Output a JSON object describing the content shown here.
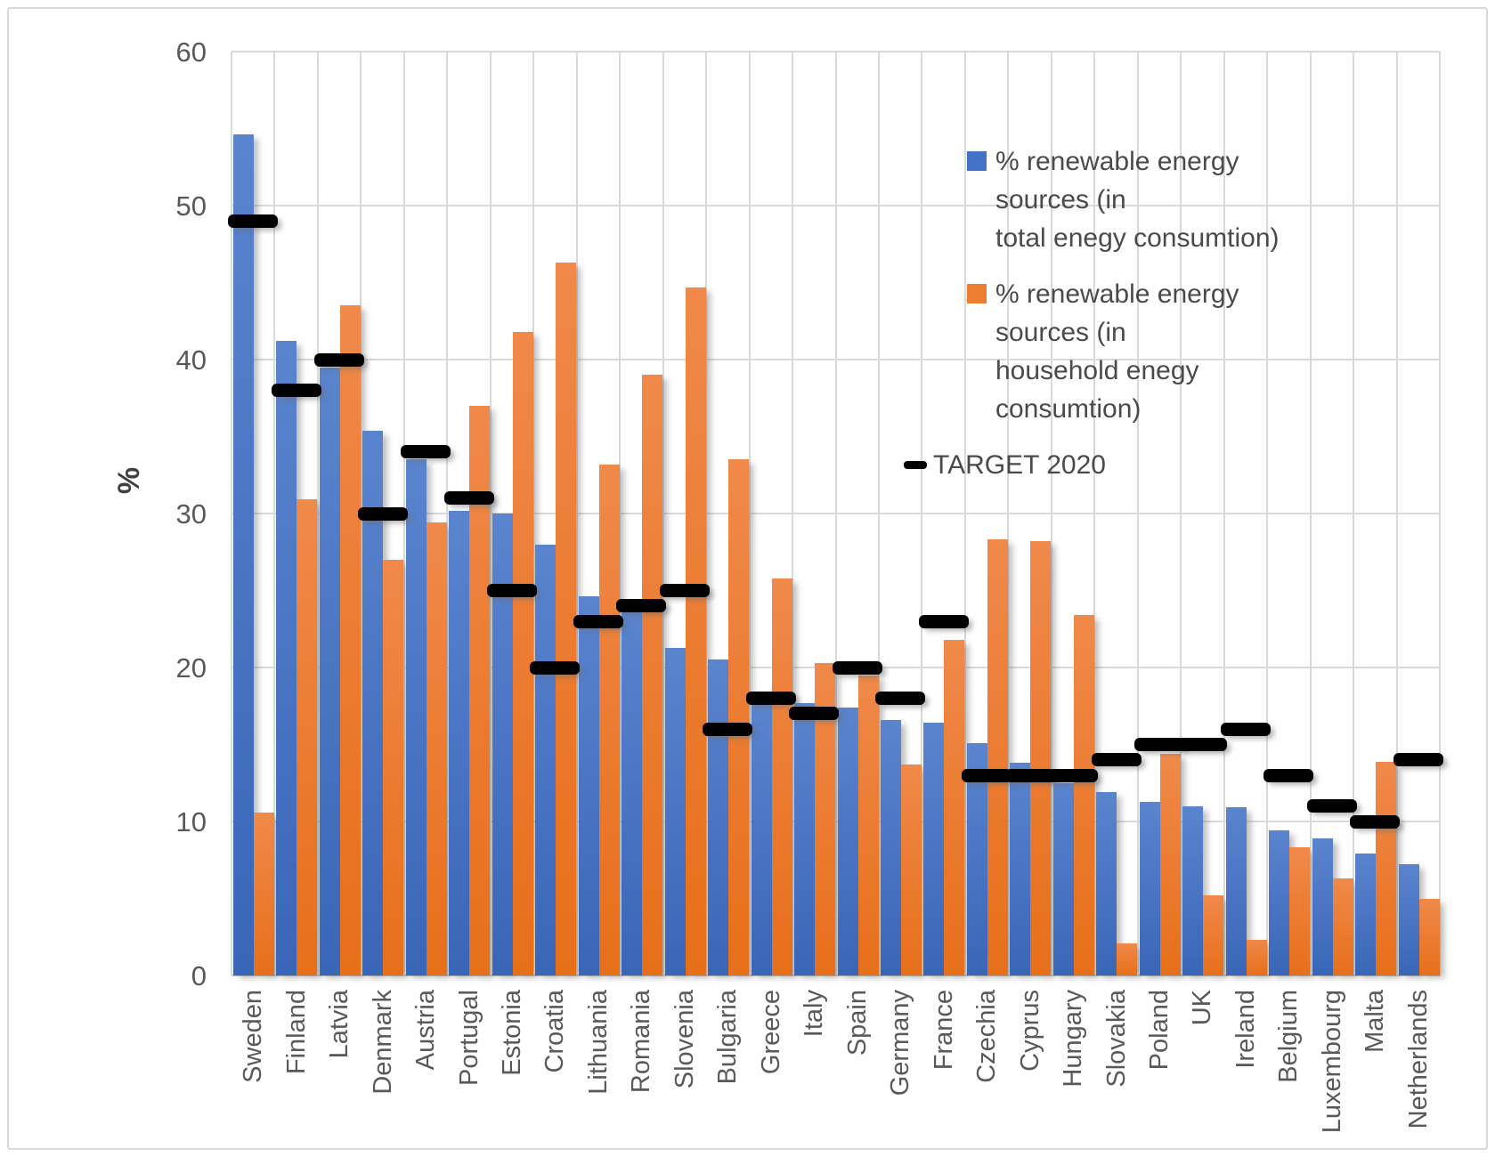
{
  "chart_data": {
    "type": "bar",
    "title": "",
    "xlabel": "",
    "ylabel": "%",
    "ylim": [
      0,
      60
    ],
    "y_ticks": [
      0,
      10,
      20,
      30,
      40,
      50,
      60
    ],
    "grid": true,
    "legend_position": "upper-right-inside",
    "categories": [
      "Sweden",
      "Finland",
      "Latvia",
      "Denmark",
      "Austria",
      "Portugal",
      "Estonia",
      "Croatia",
      "Lithuania",
      "Romania",
      "Slovenia",
      "Bulgaria",
      "Greece",
      "Italy",
      "Spain",
      "Germany",
      "France",
      "Czechia",
      "Cyprus",
      "Hungary",
      "Slovakia",
      "Poland",
      "UK",
      "Ireland",
      "Belgium",
      "Luxembourg",
      "Malta",
      "Netherlands"
    ],
    "series": [
      {
        "name": "% renewable energy sources (in total enegy consumtion)",
        "type": "bar",
        "color": "#4472C4",
        "values": [
          54.6,
          41.2,
          39.5,
          35.4,
          33.5,
          30.2,
          30.0,
          28.0,
          24.6,
          23.9,
          21.3,
          20.5,
          17.9,
          17.7,
          17.4,
          16.6,
          16.4,
          15.1,
          13.8,
          12.5,
          11.9,
          11.3,
          11.0,
          10.9,
          9.4,
          8.9,
          7.9,
          7.2
        ]
      },
      {
        "name": "% renewable energy sources (in household enegy consumtion)",
        "type": "bar",
        "color": "#ED7D31",
        "values": [
          10.6,
          30.9,
          43.5,
          27.0,
          29.4,
          37.0,
          41.8,
          46.3,
          33.2,
          39.0,
          44.7,
          33.5,
          25.8,
          20.3,
          19.5,
          13.7,
          21.8,
          28.3,
          28.2,
          23.4,
          2.1,
          14.4,
          5.2,
          2.3,
          8.3,
          6.3,
          13.9,
          5.0
        ]
      },
      {
        "name": "TARGET 2020",
        "type": "dash",
        "color": "#000000",
        "values": [
          49,
          38,
          40,
          30,
          34,
          31,
          25,
          20,
          23,
          24,
          25,
          16,
          18,
          17,
          20,
          18,
          23,
          13,
          13,
          13,
          14,
          15,
          15,
          16,
          13,
          11,
          10,
          14
        ]
      }
    ],
    "legend": {
      "items": [
        {
          "swatch": "square",
          "color": "#4472C4",
          "lines": [
            "% renewable energy sources (in",
            "total enegy consumtion)"
          ]
        },
        {
          "swatch": "square",
          "color": "#ED7D31",
          "lines": [
            "% renewable energy sources (in",
            "household enegy consumtion)"
          ]
        },
        {
          "swatch": "dash",
          "color": "#000000",
          "lines": [
            "TARGET 2020"
          ]
        }
      ]
    }
  },
  "colors": {
    "series_total": "#4472C4",
    "series_household": "#ED7D31",
    "target": "#000000",
    "gridline": "#D9D9D9",
    "axis_line": "#BFBFBF",
    "tick_text": "#595959",
    "legend_text": "#4A4A4A",
    "frame_border": "#D8D8D8"
  }
}
